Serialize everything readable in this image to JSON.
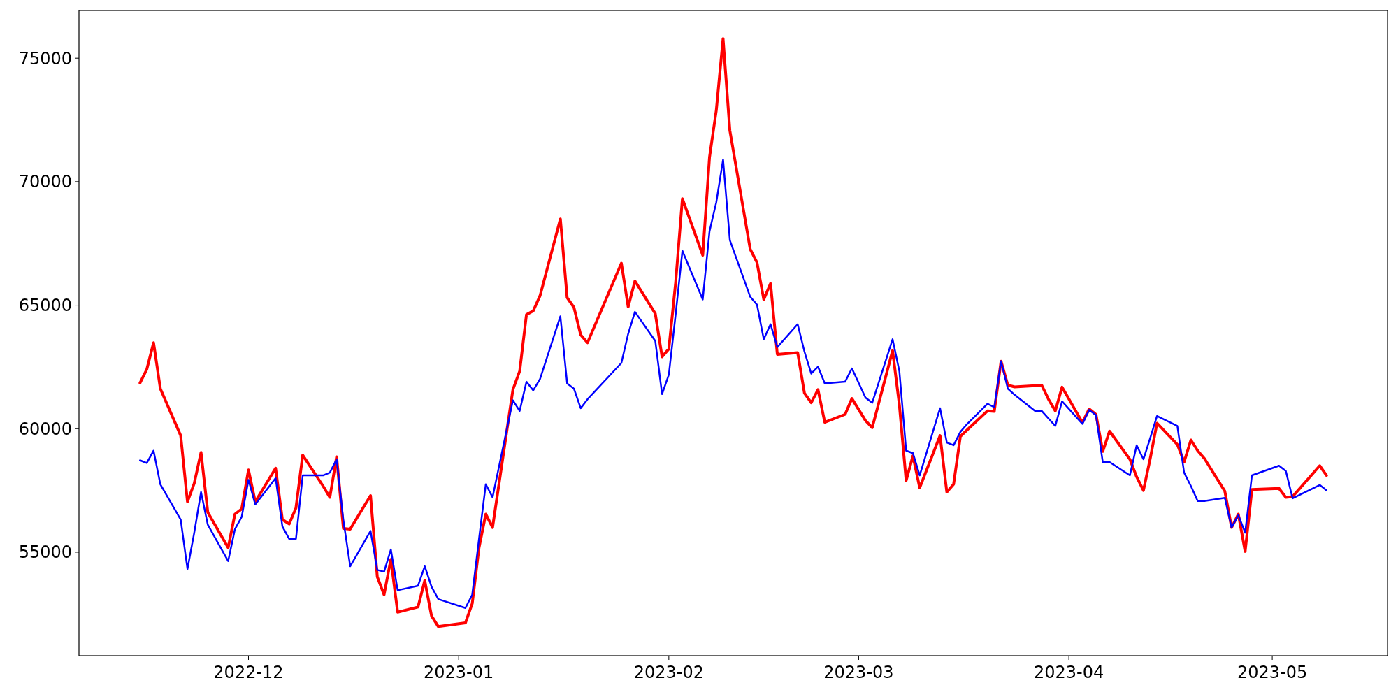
{
  "chart_data": {
    "type": "line",
    "x": [
      "2022-11-15",
      "2022-11-16",
      "2022-11-17",
      "2022-11-18",
      "2022-11-21",
      "2022-11-22",
      "2022-11-23",
      "2022-11-24",
      "2022-11-25",
      "2022-11-28",
      "2022-11-29",
      "2022-11-30",
      "2022-12-01",
      "2022-12-02",
      "2022-12-05",
      "2022-12-06",
      "2022-12-07",
      "2022-12-08",
      "2022-12-09",
      "2022-12-12",
      "2022-12-13",
      "2022-12-14",
      "2022-12-15",
      "2022-12-16",
      "2022-12-19",
      "2022-12-20",
      "2022-12-21",
      "2022-12-22",
      "2022-12-23",
      "2022-12-26",
      "2022-12-27",
      "2022-12-28",
      "2022-12-29",
      "2023-01-02",
      "2023-01-03",
      "2023-01-04",
      "2023-01-05",
      "2023-01-06",
      "2023-01-09",
      "2023-01-10",
      "2023-01-11",
      "2023-01-12",
      "2023-01-13",
      "2023-01-16",
      "2023-01-17",
      "2023-01-18",
      "2023-01-19",
      "2023-01-20",
      "2023-01-25",
      "2023-01-26",
      "2023-01-27",
      "2023-01-30",
      "2023-01-31",
      "2023-02-01",
      "2023-02-02",
      "2023-02-03",
      "2023-02-06",
      "2023-02-07",
      "2023-02-08",
      "2023-02-09",
      "2023-02-10",
      "2023-02-13",
      "2023-02-14",
      "2023-02-15",
      "2023-02-16",
      "2023-02-17",
      "2023-02-20",
      "2023-02-21",
      "2023-02-22",
      "2023-02-23",
      "2023-02-24",
      "2023-02-27",
      "2023-02-28",
      "2023-03-02",
      "2023-03-03",
      "2023-03-06",
      "2023-03-07",
      "2023-03-08",
      "2023-03-09",
      "2023-03-10",
      "2023-03-13",
      "2023-03-14",
      "2023-03-15",
      "2023-03-16",
      "2023-03-17",
      "2023-03-20",
      "2023-03-21",
      "2023-03-22",
      "2023-03-23",
      "2023-03-24",
      "2023-03-27",
      "2023-03-28",
      "2023-03-29",
      "2023-03-30",
      "2023-03-31",
      "2023-04-03",
      "2023-04-04",
      "2023-04-05",
      "2023-04-06",
      "2023-04-07",
      "2023-04-10",
      "2023-04-11",
      "2023-04-12",
      "2023-04-13",
      "2023-04-14",
      "2023-04-17",
      "2023-04-18",
      "2023-04-19",
      "2023-04-20",
      "2023-04-21",
      "2023-04-24",
      "2023-04-25",
      "2023-04-26",
      "2023-04-27",
      "2023-04-28",
      "2023-05-02",
      "2023-05-03",
      "2023-05-04",
      "2023-05-08",
      "2023-05-09"
    ],
    "series": [
      {
        "color": "#ff0000",
        "values": [
          61850,
          62400,
          63480,
          61620,
          59720,
          57040,
          57790,
          59040,
          56610,
          55180,
          56540,
          56750,
          58330,
          57040,
          58400,
          56320,
          56140,
          56790,
          58930,
          57680,
          57220,
          58860,
          55960,
          55930,
          57290,
          54000,
          53280,
          54710,
          52570,
          52780,
          53850,
          52420,
          51990,
          52140,
          52920,
          55180,
          56540,
          56000,
          61580,
          62330,
          64620,
          64770,
          65380,
          68490,
          65300,
          64910,
          63800,
          63480,
          66700,
          64930,
          65980,
          64660,
          62910,
          63230,
          65910,
          69310,
          67020,
          70990,
          72890,
          75790,
          72070,
          67270,
          66730,
          65230,
          65880,
          63010,
          63080,
          61440,
          61050,
          61580,
          60260,
          60580,
          61220,
          60330,
          60040,
          63160,
          60970,
          57900,
          58900,
          57610,
          59720,
          57430,
          57750,
          59690,
          59950,
          60720,
          60700,
          62730,
          61760,
          61690,
          61740,
          61760,
          61190,
          60720,
          61680,
          60250,
          60800,
          60580,
          59080,
          59900,
          58760,
          58050,
          57500,
          58790,
          60220,
          59360,
          58650,
          59540,
          59110,
          58790,
          57470,
          56000,
          56540,
          55030,
          57540,
          57580,
          57220,
          57250,
          58500,
          58110
        ]
      },
      {
        "color": "#0000ff",
        "values": [
          58720,
          58610,
          59110,
          57750,
          56320,
          54320,
          55790,
          57430,
          56110,
          54640,
          55930,
          56430,
          57930,
          56930,
          58000,
          56040,
          55540,
          55540,
          58110,
          58110,
          58220,
          58760,
          56290,
          54430,
          55860,
          54280,
          54210,
          55110,
          53460,
          53640,
          54430,
          53600,
          53100,
          52740,
          53280,
          55540,
          57750,
          57220,
          61150,
          60720,
          61900,
          61550,
          62010,
          64550,
          61830,
          61620,
          60830,
          61190,
          62660,
          63840,
          64730,
          63550,
          61400,
          62190,
          64620,
          67200,
          65230,
          67990,
          69170,
          70890,
          67630,
          65340,
          65020,
          63620,
          64230,
          63300,
          64230,
          63120,
          62230,
          62510,
          61830,
          61900,
          62440,
          61260,
          61050,
          63620,
          62330,
          59110,
          59010,
          58110,
          60830,
          59440,
          59330,
          59870,
          60190,
          61010,
          60870,
          62730,
          61620,
          61370,
          60720,
          60720,
          60410,
          60110,
          61110,
          60190,
          60760,
          60550,
          58650,
          58650,
          58110,
          59330,
          58760,
          59620,
          60510,
          60110,
          58220,
          57680,
          57070,
          57070,
          57200,
          56000,
          56500,
          55790,
          58110,
          58500,
          58290,
          57180,
          57720,
          57500
        ]
      }
    ],
    "xlim": [
      "2022-11-06",
      "2023-05-18"
    ],
    "xticks": [
      {
        "value": "2022-12-01",
        "label": "2022-12"
      },
      {
        "value": "2023-01-01",
        "label": "2023-01"
      },
      {
        "value": "2023-02-01",
        "label": "2023-02"
      },
      {
        "value": "2023-03-01",
        "label": "2023-03"
      },
      {
        "value": "2023-04-01",
        "label": "2023-04"
      },
      {
        "value": "2023-05-01",
        "label": "2023-05"
      }
    ],
    "ylim": [
      50810,
      76930
    ],
    "yticks": [
      55000,
      60000,
      65000,
      70000,
      75000
    ]
  }
}
